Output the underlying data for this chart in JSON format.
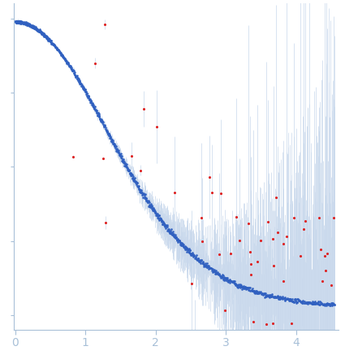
{
  "xlim": [
    -0.02,
    4.6
  ],
  "ylim": [
    -0.05,
    1.05
  ],
  "x_ticks": [
    0,
    1,
    2,
    3,
    4
  ],
  "background_color": "#ffffff",
  "axis_color": "#a8c0d8",
  "tick_color": "#a8c0d8",
  "data_color": "#3060c0",
  "error_color": "#c8d8ec",
  "outlier_color": "#dd2222",
  "point_size": 3.5,
  "outlier_size": 5.0,
  "errorbar_linewidth": 0.5,
  "seed": 42
}
